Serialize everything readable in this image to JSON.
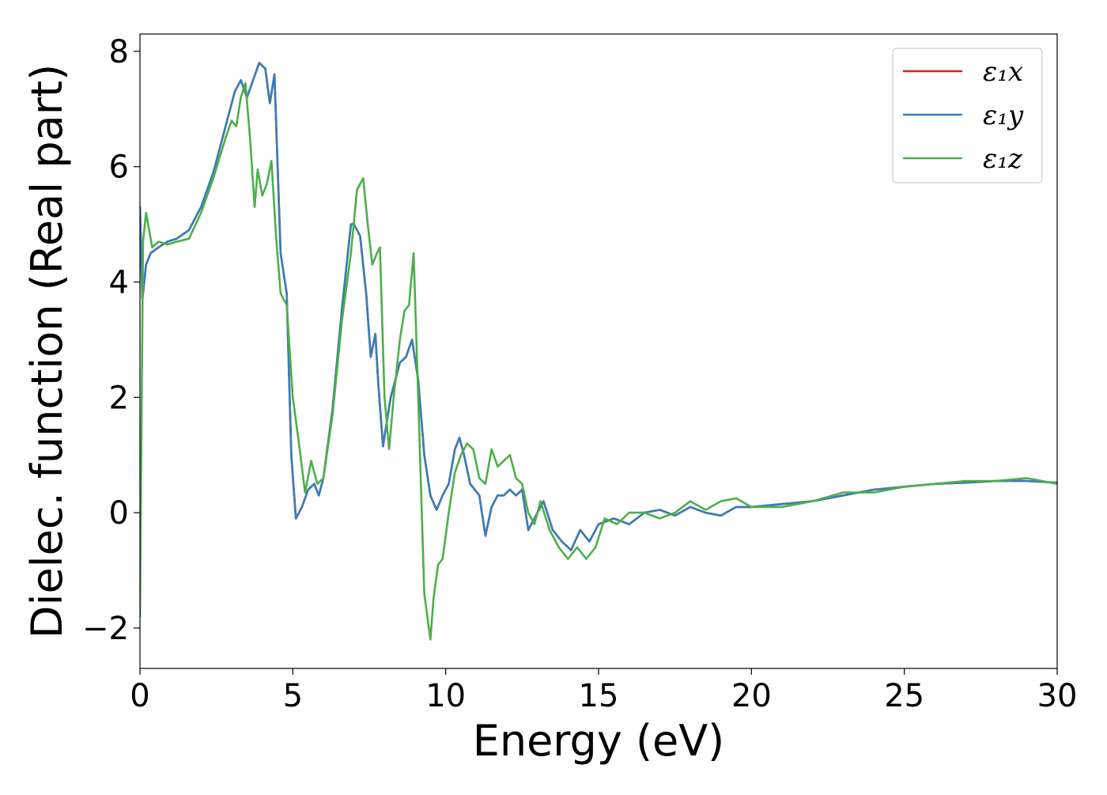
{
  "chart_data": {
    "type": "line",
    "title": "",
    "xlabel": "Energy (eV)",
    "ylabel": "Dielec. function (Real part)",
    "xlim": [
      0,
      30
    ],
    "ylim": [
      -2.7,
      8.3
    ],
    "xticks": [
      0,
      5,
      10,
      15,
      20,
      25,
      30
    ],
    "xtick_labels": [
      "0",
      "5",
      "10",
      "15",
      "20",
      "25",
      "30"
    ],
    "yticks": [
      -2,
      0,
      2,
      4,
      6,
      8
    ],
    "ytick_labels": [
      "−2",
      "0",
      "2",
      "4",
      "6",
      "8"
    ],
    "grid": false,
    "legend_position": "top-right",
    "series": [
      {
        "name": "ε₁x",
        "color": "#e41a1c",
        "x": [
          0,
          0.08,
          0.2,
          0.35,
          0.6,
          0.9,
          1.2,
          1.6,
          2.0,
          2.4,
          2.8,
          3.1,
          3.3,
          3.5,
          3.7,
          3.9,
          4.1,
          4.25,
          4.4,
          4.6,
          4.8,
          4.95,
          5.1,
          5.3,
          5.5,
          5.7,
          5.85,
          6.0,
          6.3,
          6.6,
          6.9,
          7.0,
          7.2,
          7.4,
          7.55,
          7.7,
          7.8,
          7.95,
          8.05,
          8.2,
          8.5,
          8.7,
          8.9,
          9.1,
          9.3,
          9.5,
          9.7,
          9.9,
          10.1,
          10.3,
          10.45,
          10.6,
          10.8,
          11.1,
          11.3,
          11.5,
          11.7,
          11.9,
          12.1,
          12.3,
          12.5,
          12.7,
          13.0,
          13.2,
          13.5,
          13.8,
          14.1,
          14.4,
          14.7,
          15.0,
          15.5,
          16.0,
          16.5,
          17.0,
          17.5,
          18.0,
          18.5,
          19.0,
          19.5,
          20.0,
          21.0,
          22.0,
          23.0,
          24.0,
          25.0,
          26.0,
          27.0,
          28.0,
          29.0,
          30.0
        ],
        "y": [
          5.3,
          3.7,
          4.3,
          4.5,
          4.6,
          4.7,
          4.75,
          4.9,
          5.3,
          5.9,
          6.7,
          7.3,
          7.5,
          7.2,
          7.5,
          7.8,
          7.7,
          7.1,
          7.6,
          4.5,
          3.8,
          1.0,
          -0.1,
          0.1,
          0.4,
          0.5,
          0.3,
          0.6,
          1.8,
          3.5,
          5.0,
          5.0,
          4.8,
          3.8,
          2.7,
          3.1,
          2.2,
          1.15,
          1.5,
          2.0,
          2.6,
          2.7,
          3.0,
          2.3,
          1.0,
          0.3,
          0.05,
          0.3,
          0.5,
          1.1,
          1.3,
          1.0,
          0.5,
          0.3,
          -0.4,
          0.1,
          0.3,
          0.3,
          0.4,
          0.3,
          0.4,
          -0.3,
          0.0,
          0.2,
          -0.3,
          -0.5,
          -0.65,
          -0.3,
          -0.5,
          -0.2,
          -0.1,
          -0.2,
          0.0,
          0.05,
          -0.05,
          0.1,
          0.0,
          -0.05,
          0.1,
          0.1,
          0.15,
          0.2,
          0.3,
          0.4,
          0.45,
          0.5,
          0.52,
          0.55,
          0.55,
          0.52
        ]
      },
      {
        "name": "ε₁y",
        "color": "#377eb8",
        "x": [
          0,
          0.08,
          0.2,
          0.35,
          0.6,
          0.9,
          1.2,
          1.6,
          2.0,
          2.4,
          2.8,
          3.1,
          3.3,
          3.5,
          3.7,
          3.9,
          4.1,
          4.25,
          4.4,
          4.6,
          4.8,
          4.95,
          5.1,
          5.3,
          5.5,
          5.7,
          5.85,
          6.0,
          6.3,
          6.6,
          6.9,
          7.0,
          7.2,
          7.4,
          7.55,
          7.7,
          7.8,
          7.95,
          8.05,
          8.2,
          8.5,
          8.7,
          8.9,
          9.1,
          9.3,
          9.5,
          9.7,
          9.9,
          10.1,
          10.3,
          10.45,
          10.6,
          10.8,
          11.1,
          11.3,
          11.5,
          11.7,
          11.9,
          12.1,
          12.3,
          12.5,
          12.7,
          13.0,
          13.2,
          13.5,
          13.8,
          14.1,
          14.4,
          14.7,
          15.0,
          15.5,
          16.0,
          16.5,
          17.0,
          17.5,
          18.0,
          18.5,
          19.0,
          19.5,
          20.0,
          21.0,
          22.0,
          23.0,
          24.0,
          25.0,
          26.0,
          27.0,
          28.0,
          29.0,
          30.0
        ],
        "y": [
          5.3,
          3.7,
          4.3,
          4.5,
          4.6,
          4.7,
          4.75,
          4.9,
          5.3,
          5.9,
          6.7,
          7.3,
          7.5,
          7.2,
          7.5,
          7.8,
          7.7,
          7.1,
          7.6,
          4.5,
          3.8,
          1.0,
          -0.1,
          0.1,
          0.4,
          0.5,
          0.3,
          0.6,
          1.8,
          3.5,
          5.0,
          5.0,
          4.8,
          3.8,
          2.7,
          3.1,
          2.2,
          1.15,
          1.5,
          2.0,
          2.6,
          2.7,
          3.0,
          2.3,
          1.0,
          0.3,
          0.05,
          0.3,
          0.5,
          1.1,
          1.3,
          1.0,
          0.5,
          0.3,
          -0.4,
          0.1,
          0.3,
          0.3,
          0.4,
          0.3,
          0.4,
          -0.3,
          0.0,
          0.2,
          -0.3,
          -0.5,
          -0.65,
          -0.3,
          -0.5,
          -0.2,
          -0.1,
          -0.2,
          0.0,
          0.05,
          -0.05,
          0.1,
          0.0,
          -0.05,
          0.1,
          0.1,
          0.15,
          0.2,
          0.3,
          0.4,
          0.45,
          0.5,
          0.52,
          0.55,
          0.55,
          0.52
        ]
      },
      {
        "name": "ε₁z",
        "color": "#4daf4a",
        "x": [
          0,
          0.1,
          0.2,
          0.3,
          0.4,
          0.6,
          0.9,
          1.2,
          1.6,
          2.0,
          2.4,
          2.8,
          3.0,
          3.15,
          3.3,
          3.45,
          3.6,
          3.75,
          3.85,
          4.0,
          4.15,
          4.3,
          4.45,
          4.6,
          4.8,
          5.0,
          5.2,
          5.4,
          5.6,
          5.8,
          6.0,
          6.3,
          6.6,
          6.9,
          7.1,
          7.3,
          7.45,
          7.6,
          7.75,
          7.85,
          8.0,
          8.15,
          8.3,
          8.5,
          8.65,
          8.8,
          8.95,
          9.1,
          9.3,
          9.5,
          9.6,
          9.75,
          9.9,
          10.1,
          10.3,
          10.5,
          10.7,
          10.9,
          11.1,
          11.3,
          11.5,
          11.7,
          11.9,
          12.1,
          12.3,
          12.5,
          12.7,
          12.9,
          13.1,
          13.4,
          13.7,
          14.0,
          14.3,
          14.6,
          14.9,
          15.2,
          15.6,
          16.0,
          16.5,
          17.0,
          17.5,
          18.0,
          18.5,
          19.0,
          19.5,
          20.0,
          21.0,
          22.0,
          23.0,
          24.0,
          25.0,
          26.0,
          27.0,
          28.0,
          29.0,
          30.0
        ],
        "y": [
          -1.8,
          4.7,
          5.2,
          4.9,
          4.6,
          4.7,
          4.65,
          4.7,
          4.75,
          5.2,
          5.8,
          6.5,
          6.8,
          6.7,
          7.2,
          7.45,
          6.5,
          5.3,
          5.95,
          5.5,
          5.7,
          6.1,
          4.8,
          3.8,
          3.6,
          2.0,
          1.2,
          0.35,
          0.9,
          0.5,
          0.6,
          1.7,
          3.3,
          4.5,
          5.6,
          5.8,
          5.0,
          4.3,
          4.5,
          4.6,
          2.0,
          1.1,
          2.0,
          3.0,
          3.5,
          3.6,
          4.5,
          2.0,
          -1.4,
          -2.2,
          -1.5,
          -0.9,
          -0.8,
          0.0,
          0.7,
          1.0,
          1.2,
          1.1,
          0.6,
          0.5,
          1.1,
          0.8,
          0.9,
          1.0,
          0.6,
          0.5,
          0.0,
          -0.2,
          0.2,
          -0.3,
          -0.6,
          -0.8,
          -0.6,
          -0.8,
          -0.6,
          -0.1,
          -0.2,
          0.0,
          0.0,
          -0.1,
          0.0,
          0.2,
          0.05,
          0.2,
          0.25,
          0.1,
          0.1,
          0.2,
          0.35,
          0.35,
          0.45,
          0.5,
          0.55,
          0.55,
          0.6,
          0.5
        ]
      }
    ]
  }
}
